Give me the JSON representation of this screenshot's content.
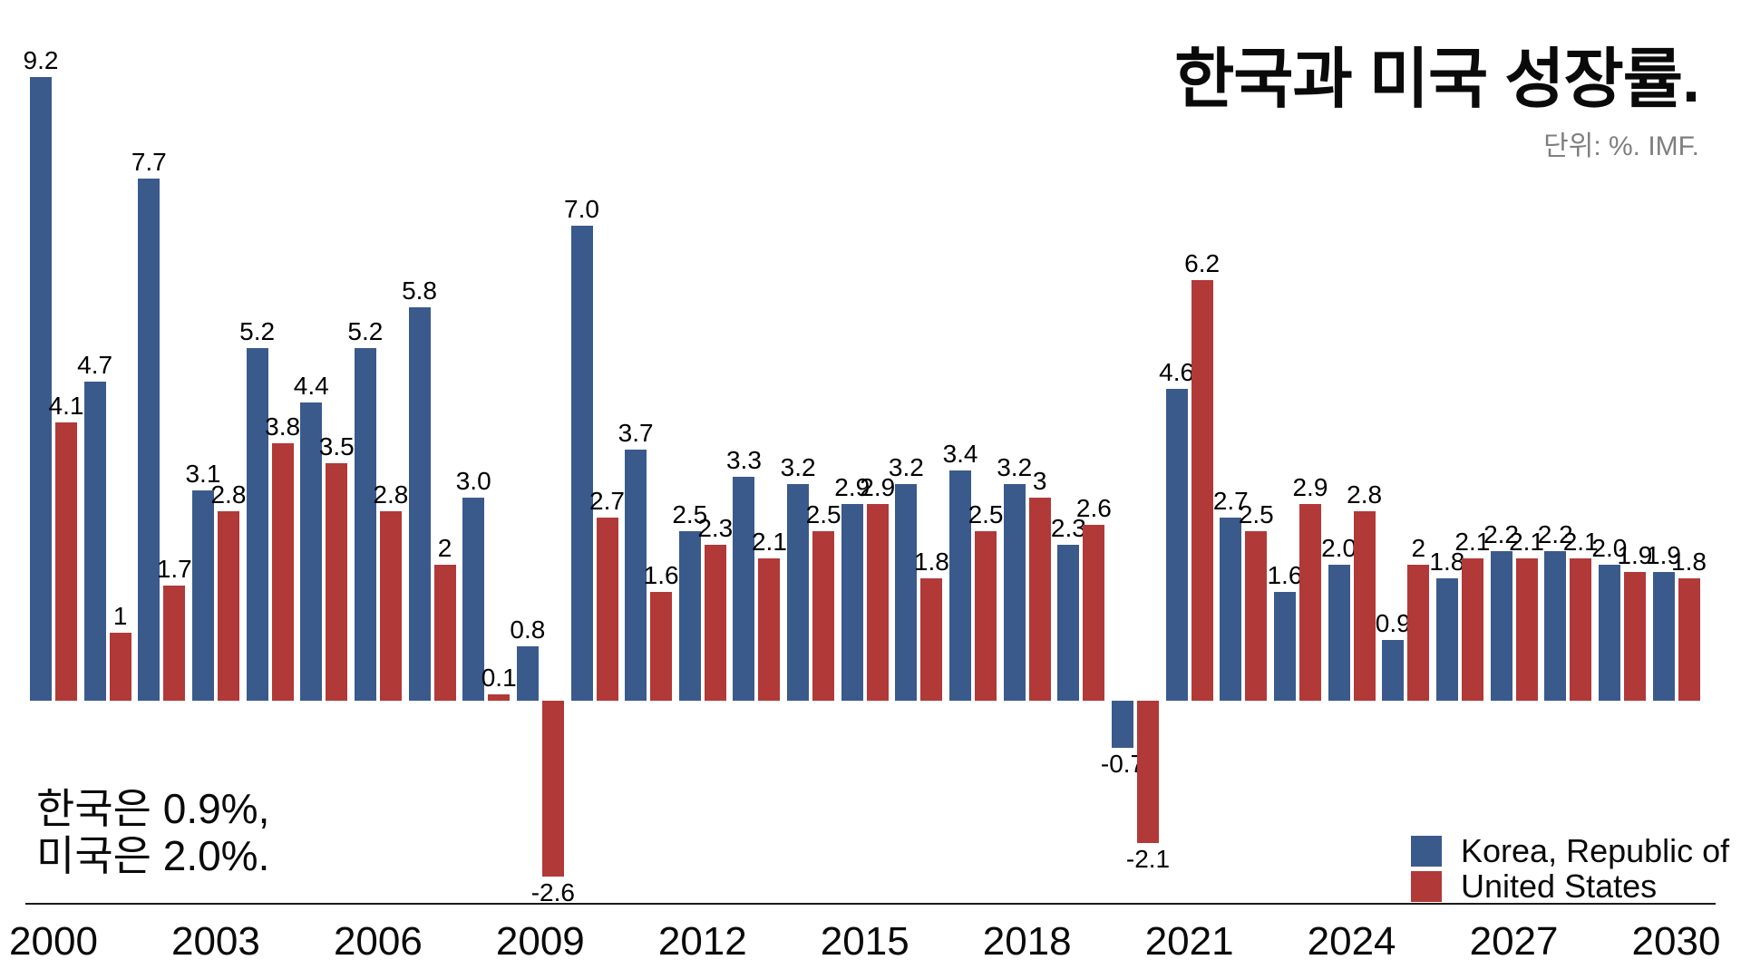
{
  "header": {
    "title": "한국과 미국 성장률.",
    "subtitle": "단위: %. IMF."
  },
  "annotation": {
    "line1": "한국은 0.9%,",
    "line2": "미국은 2.0%."
  },
  "legend": [
    {
      "label": "Korea, Republic of",
      "color": "#3A5A8C"
    },
    {
      "label": "United States",
      "color": "#B13938"
    }
  ],
  "colors": {
    "korea_blue": "#3A5A8C",
    "us_red": "#B13938",
    "subtitle_gray": "#7F7F7F",
    "axis_black": "#1A1A1A"
  },
  "chart_data": {
    "type": "bar",
    "title": "한국과 미국 성장률.",
    "unit_note": "단위: %. IMF.",
    "x": [
      2000,
      2001,
      2002,
      2003,
      2004,
      2005,
      2006,
      2007,
      2008,
      2009,
      2010,
      2011,
      2012,
      2013,
      2014,
      2015,
      2016,
      2017,
      2018,
      2019,
      2020,
      2021,
      2022,
      2023,
      2024,
      2025,
      2026,
      2027,
      2028,
      2029,
      2030
    ],
    "x_tick_labels": [
      "2000",
      "2003",
      "2006",
      "2009",
      "2012",
      "2015",
      "2018",
      "2021",
      "2024",
      "2027",
      "2030"
    ],
    "ylim": [
      -3.2,
      9.6
    ],
    "grid": false,
    "legend_position": "bottom-right",
    "series": [
      {
        "name": "Korea, Republic of",
        "color": "#3A5A8C",
        "values": [
          9.2,
          4.7,
          7.7,
          3.1,
          5.2,
          4.4,
          5.2,
          5.8,
          3.0,
          0.8,
          7.0,
          3.7,
          2.5,
          3.3,
          3.2,
          2.9,
          3.2,
          3.4,
          3.2,
          2.3,
          -0.7,
          4.6,
          2.7,
          1.6,
          2.0,
          0.9,
          1.8,
          2.2,
          2.2,
          2.0,
          1.9
        ],
        "labels": [
          "9.2",
          "4.7",
          "7.7",
          "3.1",
          "5.2",
          "4.4",
          "5.2",
          "5.8",
          "3.0",
          "0.8",
          "7.0",
          "3.7",
          "2.5",
          "3.3",
          "3.2",
          "2.9",
          "3.2",
          "3.4",
          "3.2",
          "2.3",
          "-0.7",
          "4.6",
          "2.7",
          "1.6",
          "2.0",
          "0.9",
          "1.8",
          "2.2",
          "2.2",
          "2.0",
          "1.9"
        ]
      },
      {
        "name": "United States",
        "color": "#B13938",
        "values": [
          4.1,
          1,
          1.7,
          2.8,
          3.8,
          3.5,
          2.8,
          2,
          0.1,
          -2.6,
          2.7,
          1.6,
          2.3,
          2.1,
          2.5,
          2.9,
          1.8,
          2.5,
          3,
          2.6,
          -2.1,
          6.2,
          2.5,
          2.9,
          2.8,
          2,
          2.1,
          2.1,
          2.1,
          1.9,
          1.8
        ],
        "labels": [
          "4.1",
          "1",
          "1.7",
          "2.8",
          "3.8",
          "3.5",
          "2.8",
          "2",
          "0.1",
          "-2.6",
          "2.7",
          "1.6",
          "2.3",
          "2.1",
          "2.5",
          "2.9",
          "1.8",
          "2.5",
          "3",
          "2.6",
          "-2.1",
          "6.2",
          "2.5",
          "2.9",
          "2.8",
          "2",
          "2.1",
          "2.1",
          "2.1",
          "1.9",
          "1.8"
        ]
      }
    ]
  }
}
